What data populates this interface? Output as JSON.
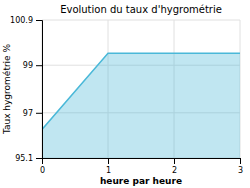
{
  "chart_data": {
    "type": "area",
    "title": "Evolution du taux d'hygrométrie",
    "x_label": "heure par heure",
    "y_label": "Taux hygrométrie %",
    "x": [
      0,
      1,
      3
    ],
    "values": [
      96.3,
      99.5,
      99.5
    ],
    "xlim": [
      0,
      3
    ],
    "ylim": [
      95.1,
      100.9
    ],
    "xticks": [
      0,
      1,
      2,
      3
    ],
    "yticks": [
      95.1,
      97,
      99,
      100.9
    ],
    "color": "#4ab8d8",
    "grid": true
  }
}
